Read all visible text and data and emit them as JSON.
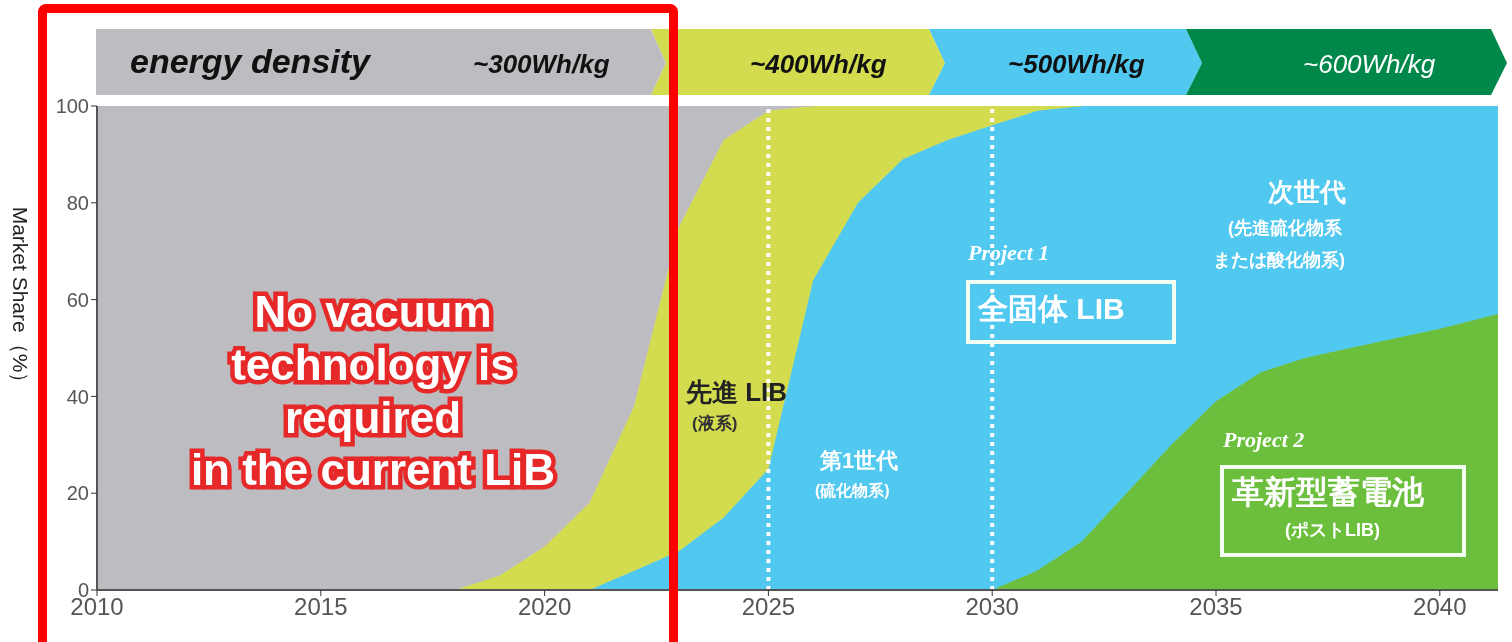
{
  "chart_data": {
    "type": "area",
    "stacked": true,
    "ylabel": "Market Share（%）",
    "x": [
      2010,
      2018,
      2019,
      2020,
      2021,
      2022,
      2023,
      2024,
      2025,
      2026,
      2027,
      2028,
      2029,
      2030,
      2031,
      2032,
      2033,
      2034,
      2035,
      2036,
      2037,
      2038,
      2039,
      2040,
      2041.3
    ],
    "series": [
      {
        "color": "#6cbf3c",
        "values": [
          0,
          0,
          0,
          0,
          0,
          0,
          0,
          0,
          0,
          0,
          0,
          0,
          0,
          0,
          4,
          10,
          20,
          30,
          39,
          45,
          48,
          50,
          52,
          54,
          57
        ]
      },
      {
        "color": "#50c8f0",
        "values": [
          0,
          0,
          0,
          0,
          0,
          4,
          8,
          15,
          25,
          64,
          80,
          89,
          93,
          96,
          95,
          90,
          80,
          70,
          61,
          55,
          52,
          50,
          48,
          46,
          43
        ]
      },
      {
        "color": "#d3dc4f",
        "values": [
          null,
          0,
          3,
          9,
          18,
          34,
          67,
          78,
          74,
          36,
          20,
          11,
          7,
          4,
          1,
          0,
          null,
          null,
          null,
          null,
          null,
          null,
          null,
          null,
          null
        ]
      },
      {
        "color": "#bdbcc0",
        "values": [
          100,
          100,
          97,
          91,
          82,
          62,
          25,
          7,
          1,
          0,
          null,
          null,
          null,
          null,
          null,
          null,
          null,
          null,
          null,
          null,
          null,
          null,
          null,
          null,
          null
        ]
      }
    ],
    "xlim": [
      2010,
      2041.3
    ],
    "xticks": [
      2010,
      2015,
      2020,
      2025,
      2030,
      2035,
      2040
    ],
    "ylim": [
      0,
      100
    ],
    "yticks": [
      0,
      20,
      40,
      60,
      80,
      100
    ],
    "ref_lines": [
      {
        "axis": "x",
        "value": 2025,
        "color": "#ffffff",
        "line_style": "dotted"
      },
      {
        "axis": "x",
        "value": 2030,
        "color": "#ffffff",
        "line_style": "dotted"
      }
    ],
    "annotations": [
      "energy density",
      "~300Wh/kg",
      "~400Wh/kg",
      "~500Wh/kg",
      "~600Wh/kg",
      "先進 LIB",
      "(液系)",
      "第1世代",
      "(硫化物系)",
      "次世代",
      "(先進硫化物系",
      "または酸化物系)",
      "Project 1",
      "全固体 LIB",
      "Project 2",
      "革新型蓄電池",
      "(ポストLIB)",
      "No vacuum\ntechnology is\nrequired\nin the current LiB"
    ]
  }
}
